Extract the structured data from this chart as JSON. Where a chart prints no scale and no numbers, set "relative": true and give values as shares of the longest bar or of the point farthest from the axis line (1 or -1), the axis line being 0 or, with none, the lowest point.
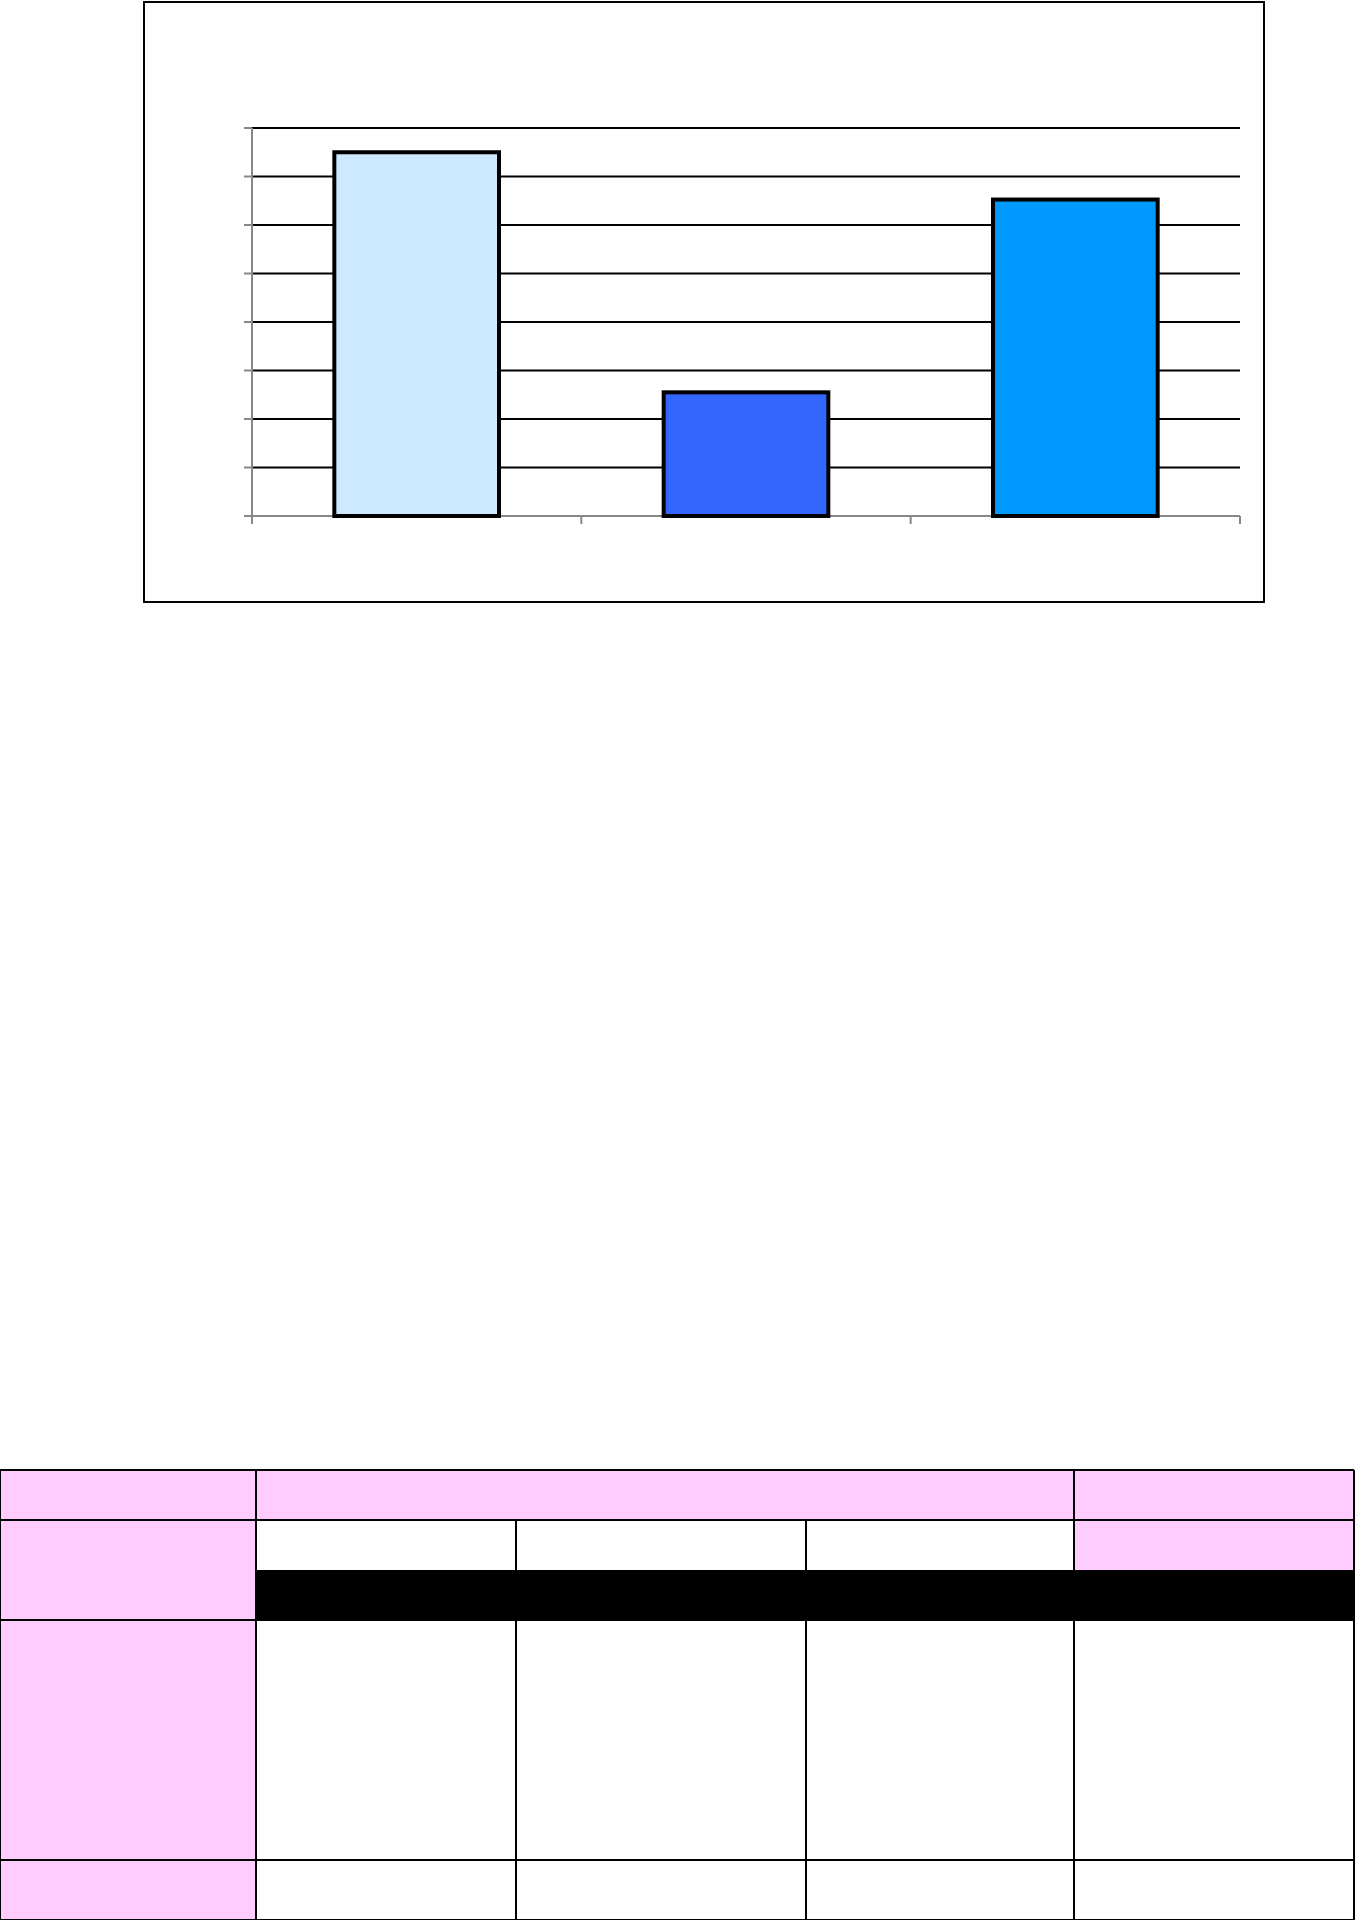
{
  "chart_data": {
    "type": "bar",
    "categories": [
      null,
      null,
      null
    ],
    "values": [
      1,
      0.34,
      0.87
    ],
    "colors": [
      "#cce9ff",
      "#3366ff",
      "#0099ff"
    ],
    "relative": true,
    "grid": "y"
  }
}
